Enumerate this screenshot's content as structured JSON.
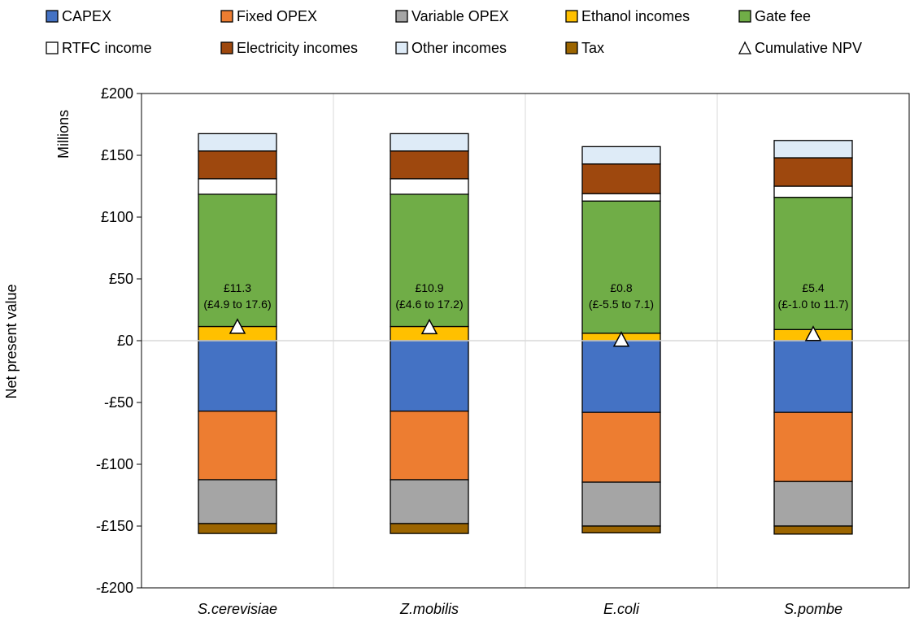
{
  "chart_data": {
    "type": "bar",
    "stacked": true,
    "categories": [
      "S.cerevisiae",
      "Z.mobilis",
      "E.coli",
      "S.pombe"
    ],
    "ylabel": "Net present value",
    "yunit": "Millions",
    "ylim": [
      -200,
      200
    ],
    "yticks": [
      -200,
      -150,
      -100,
      -50,
      0,
      50,
      100,
      150,
      200
    ],
    "ytick_labels": [
      "-£200",
      "-£150",
      "-£100",
      "-£50",
      "£0",
      "£50",
      "£100",
      "£150",
      "£200"
    ],
    "grid": "vertical category separators",
    "legend_position": "top",
    "negative_series": [
      {
        "name": "CAPEX",
        "color": "#4472C4",
        "values": [
          -57,
          -57,
          -58,
          -58
        ]
      },
      {
        "name": "Fixed OPEX",
        "color": "#ED7D31",
        "values": [
          -55.5,
          -55.5,
          -56.5,
          -56
        ]
      },
      {
        "name": "Variable OPEX",
        "color": "#A5A5A5",
        "values": [
          -35.5,
          -35.5,
          -35.5,
          -36
        ]
      },
      {
        "name": "Tax",
        "color": "#9C6500",
        "values": [
          -8,
          -8,
          -5.5,
          -6.5
        ]
      }
    ],
    "positive_series": [
      {
        "name": "Ethanol incomes",
        "color": "#FFC000",
        "values": [
          11.5,
          11.5,
          6,
          9
        ]
      },
      {
        "name": "Gate fee",
        "color": "#70AD47",
        "values": [
          107,
          107,
          107,
          107
        ]
      },
      {
        "name": "RTFC income",
        "color": "#FFFFFF",
        "values": [
          12.5,
          12.5,
          6,
          9
        ]
      },
      {
        "name": "Electricity incomes",
        "color": "#9E480E",
        "values": [
          22.5,
          22.5,
          24,
          23
        ]
      },
      {
        "name": "Other incomes",
        "color": "#DEEBF7",
        "values": [
          14,
          14,
          14,
          14
        ]
      }
    ],
    "cumulative_npv": {
      "name": "Cumulative NPV",
      "values": [
        11.3,
        10.9,
        0.8,
        5.4
      ],
      "labels": [
        "£11.3",
        "£10.9",
        "£0.8",
        "£5.4"
      ],
      "ranges": [
        "(£4.9 to 17.6)",
        "(£4.6 to 17.2)",
        "(£-5.5 to 7.1)",
        "(£-1.0 to 11.7)"
      ]
    },
    "legend": [
      {
        "name": "CAPEX",
        "color": "#4472C4",
        "shape": "square"
      },
      {
        "name": "Fixed OPEX",
        "color": "#ED7D31",
        "shape": "square"
      },
      {
        "name": "Variable OPEX",
        "color": "#A5A5A5",
        "shape": "square"
      },
      {
        "name": "Ethanol incomes",
        "color": "#FFC000",
        "shape": "square"
      },
      {
        "name": "Gate fee",
        "color": "#70AD47",
        "shape": "square"
      },
      {
        "name": "RTFC income",
        "color": "#FFFFFF",
        "shape": "square"
      },
      {
        "name": "Electricity incomes",
        "color": "#9E480E",
        "shape": "square"
      },
      {
        "name": "Other incomes",
        "color": "#DEEBF7",
        "shape": "square"
      },
      {
        "name": "Tax",
        "color": "#9C6500",
        "shape": "square"
      },
      {
        "name": "Cumulative NPV",
        "color": "#FFFFFF",
        "shape": "triangle"
      }
    ]
  }
}
